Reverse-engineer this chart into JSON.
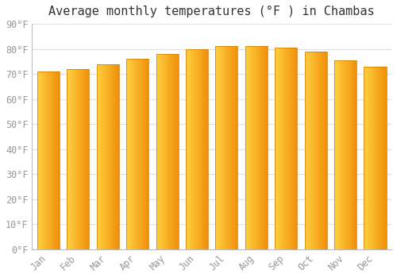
{
  "title": "Average monthly temperatures (°F ) in Chambas",
  "months": [
    "Jan",
    "Feb",
    "Mar",
    "Apr",
    "May",
    "Jun",
    "Jul",
    "Aug",
    "Sep",
    "Oct",
    "Nov",
    "Dec"
  ],
  "values": [
    71,
    72,
    74,
    76,
    78,
    80,
    81,
    81,
    80.5,
    79,
    75.5,
    73
  ],
  "ylim": [
    0,
    90
  ],
  "yticks": [
    0,
    10,
    20,
    30,
    40,
    50,
    60,
    70,
    80,
    90
  ],
  "ytick_labels": [
    "0°F",
    "10°F",
    "20°F",
    "30°F",
    "40°F",
    "50°F",
    "60°F",
    "70°F",
    "80°F",
    "90°F"
  ],
  "bar_color_left": "#FFD040",
  "bar_color_right": "#F0900A",
  "bar_edge_color": "#CC7700",
  "background_color": "#ffffff",
  "grid_color": "#e0e0e0",
  "title_fontsize": 11,
  "tick_fontsize": 8.5,
  "tick_color": "#999999",
  "title_color": "#333333"
}
